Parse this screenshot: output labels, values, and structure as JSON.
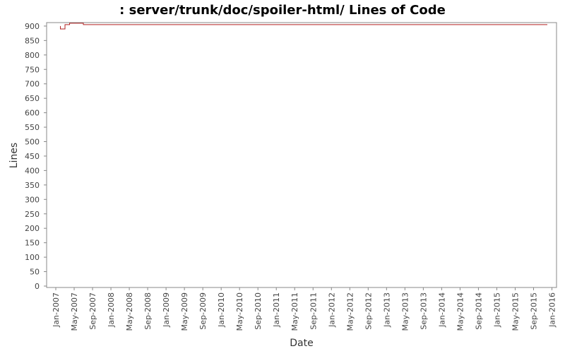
{
  "chart_data": {
    "type": "line",
    "title": ": server/trunk/doc/spoiler-html/ Lines of Code",
    "x_label": "Date",
    "y_label": "Lines",
    "x": [
      "2007-02",
      "2007-02",
      "2007-03",
      "2007-04",
      "2007-07",
      "2015-12"
    ],
    "series": [
      {
        "name": "Lines",
        "color": "#b22222",
        "values": [
          900,
          890,
          905,
          910,
          905,
          905
        ]
      }
    ],
    "step": "after",
    "xlim": [
      "2006-11",
      "2016-02"
    ],
    "xticks": [
      {
        "value": "2007-01",
        "label": "Jan-2007"
      },
      {
        "value": "2007-05",
        "label": "May-2007"
      },
      {
        "value": "2007-09",
        "label": "Sep-2007"
      },
      {
        "value": "2008-01",
        "label": "Jan-2008"
      },
      {
        "value": "2008-05",
        "label": "May-2008"
      },
      {
        "value": "2008-09",
        "label": "Sep-2008"
      },
      {
        "value": "2009-01",
        "label": "Jan-2009"
      },
      {
        "value": "2009-05",
        "label": "May-2009"
      },
      {
        "value": "2009-09",
        "label": "Sep-2009"
      },
      {
        "value": "2010-01",
        "label": "Jan-2010"
      },
      {
        "value": "2010-05",
        "label": "May-2010"
      },
      {
        "value": "2010-09",
        "label": "Sep-2010"
      },
      {
        "value": "2011-01",
        "label": "Jan-2011"
      },
      {
        "value": "2011-05",
        "label": "May-2011"
      },
      {
        "value": "2011-09",
        "label": "Sep-2011"
      },
      {
        "value": "2012-01",
        "label": "Jan-2012"
      },
      {
        "value": "2012-05",
        "label": "May-2012"
      },
      {
        "value": "2012-09",
        "label": "Sep-2012"
      },
      {
        "value": "2013-01",
        "label": "Jan-2013"
      },
      {
        "value": "2013-05",
        "label": "May-2013"
      },
      {
        "value": "2013-09",
        "label": "Sep-2013"
      },
      {
        "value": "2014-01",
        "label": "Jan-2014"
      },
      {
        "value": "2014-05",
        "label": "May-2014"
      },
      {
        "value": "2014-09",
        "label": "Sep-2014"
      },
      {
        "value": "2015-01",
        "label": "Jan-2015"
      },
      {
        "value": "2015-05",
        "label": "May-2015"
      },
      {
        "value": "2015-09",
        "label": "Sep-2015"
      },
      {
        "value": "2016-01",
        "label": "Jan-2016"
      }
    ],
    "ylim": [
      0,
      912
    ],
    "yticks": [
      0,
      50,
      100,
      150,
      200,
      250,
      300,
      350,
      400,
      450,
      500,
      550,
      600,
      650,
      700,
      750,
      800,
      850,
      900
    ],
    "grid": false
  }
}
